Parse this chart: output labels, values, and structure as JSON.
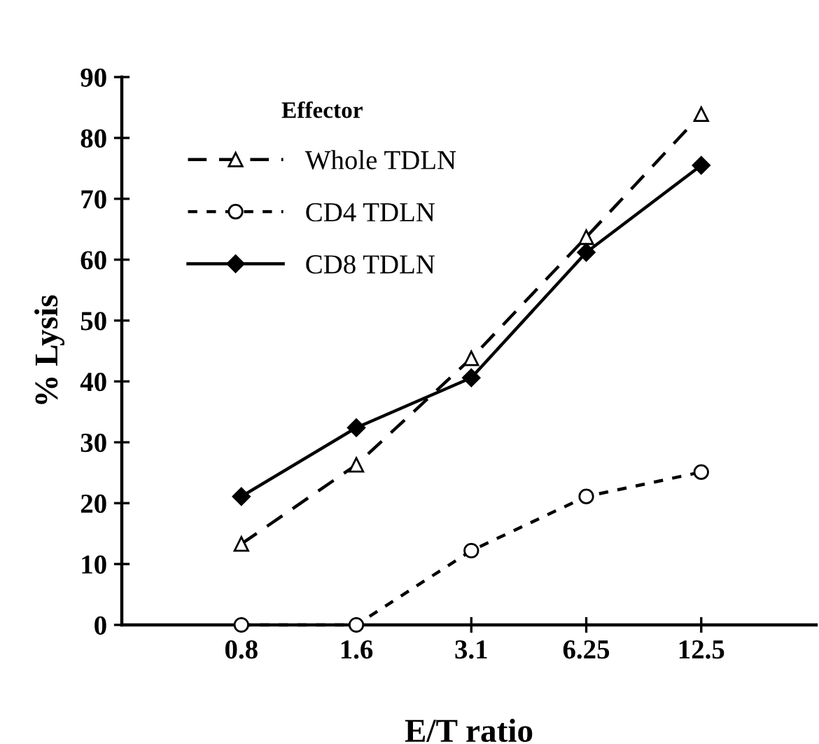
{
  "chart_data": {
    "type": "line",
    "xlabel": "E/T ratio",
    "ylabel": "% Lysis",
    "legend_title": "Effector",
    "categories": [
      "0.8",
      "1.6",
      "3.1",
      "6.25",
      "12.5"
    ],
    "series": [
      {
        "name": "Whole TDLN",
        "color": "#000000",
        "marker": "triangle",
        "line_style": "dashed",
        "values": [
          13.3,
          26.3,
          43.8,
          63.7,
          83.9
        ]
      },
      {
        "name": "CD4 TDLN",
        "color": "#000000",
        "marker": "circle",
        "line_style": "dotted",
        "values": [
          0,
          0,
          12.2,
          21.1,
          25.1
        ]
      },
      {
        "name": "CD8 TDLN",
        "color": "#000000",
        "marker": "diamond",
        "line_style": "solid",
        "values": [
          21.1,
          32.4,
          40.6,
          61.2,
          75.5
        ]
      }
    ],
    "ylim": [
      0,
      90
    ],
    "yticks": [
      0,
      10,
      20,
      30,
      40,
      50,
      60,
      70,
      80,
      90
    ],
    "grid": false,
    "legend": "top left"
  }
}
